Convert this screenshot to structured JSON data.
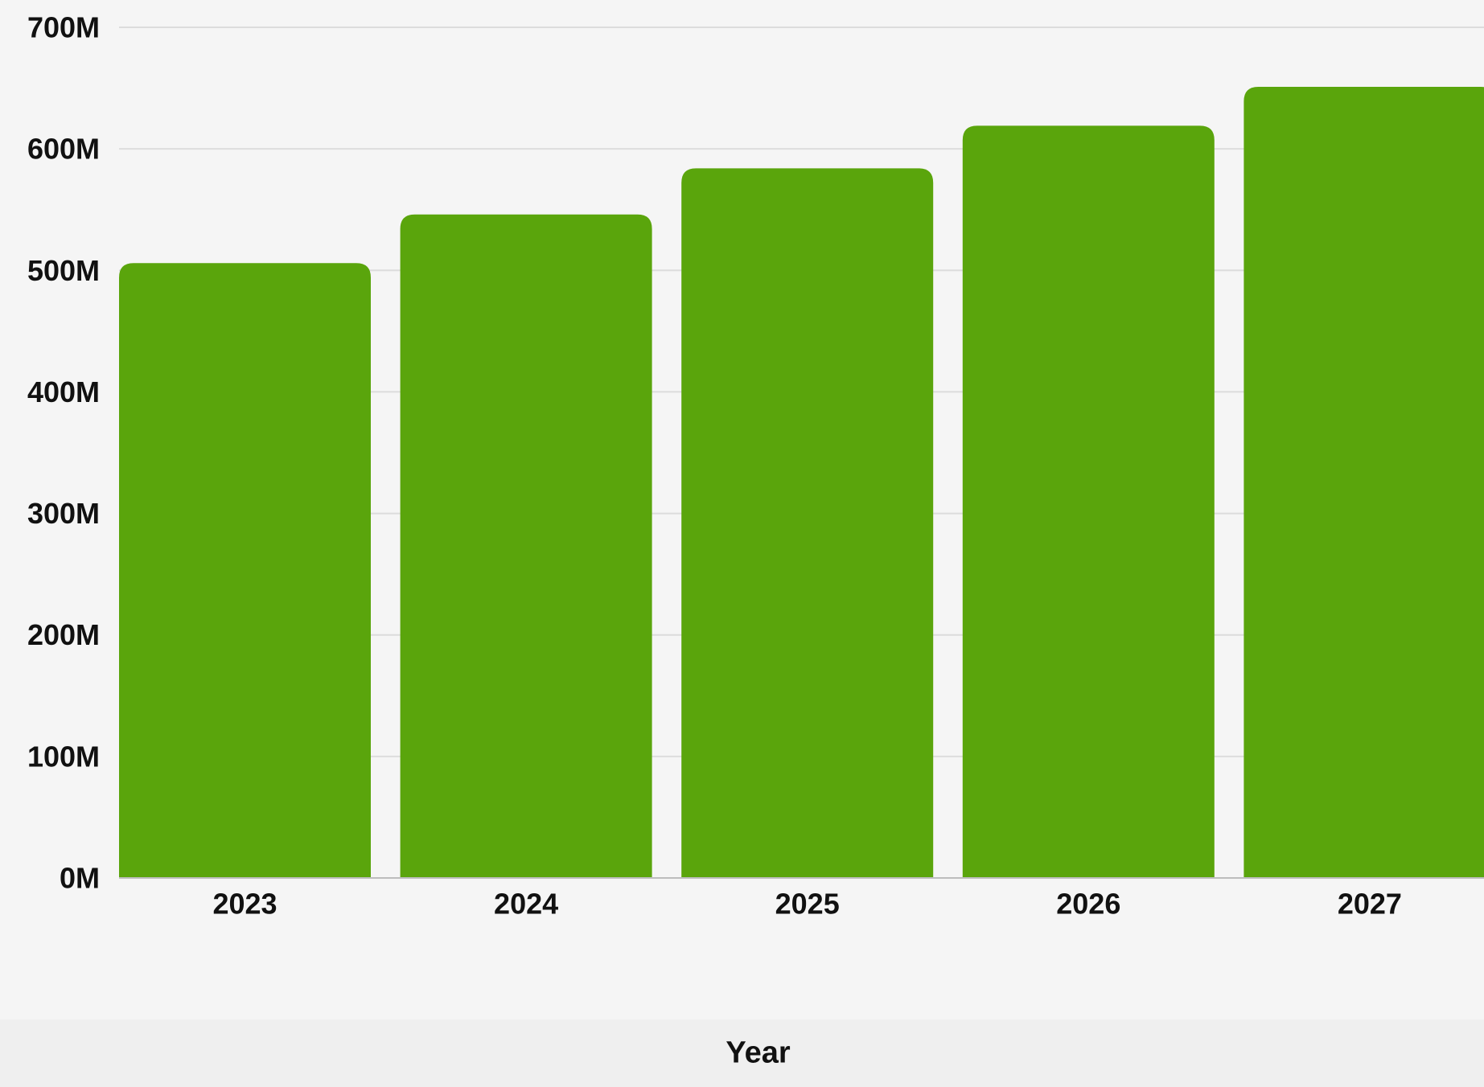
{
  "chart_data": {
    "type": "bar",
    "categories": [
      "2023",
      "2024",
      "2025",
      "2026",
      "2027"
    ],
    "values": [
      506000000,
      546000000,
      584000000,
      619000000,
      651000000
    ],
    "ylim": [
      0,
      700000000
    ],
    "yticks": [
      0,
      100000000,
      200000000,
      300000000,
      400000000,
      500000000,
      600000000,
      700000000
    ],
    "ytick_labels": [
      "0M",
      "100M",
      "200M",
      "300M",
      "400M",
      "500M",
      "600M",
      "700M"
    ],
    "xlabel": "Year",
    "ylabel": "",
    "title": "",
    "grid": true,
    "bar_color": "#5aa50c",
    "background_color": "#f5f5f5"
  }
}
